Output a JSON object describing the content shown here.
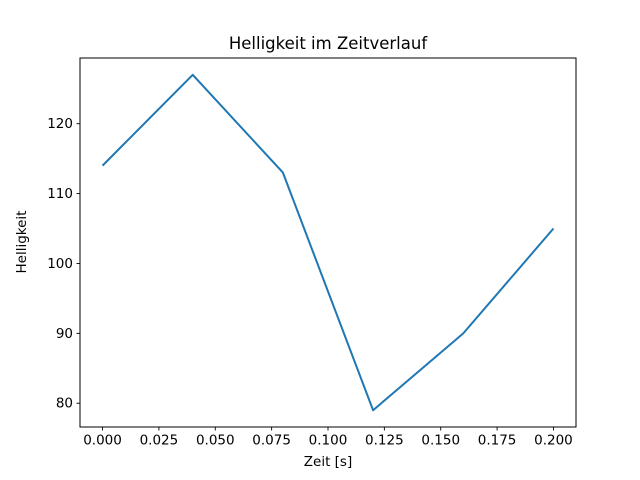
{
  "chart_data": {
    "type": "line",
    "title": "Helligkeit im Zeitverlauf",
    "xlabel": "Zeit [s]",
    "ylabel": "Helligkeit",
    "x": [
      0.0,
      0.04,
      0.08,
      0.12,
      0.16,
      0.2
    ],
    "y": [
      114,
      127,
      113,
      79,
      90,
      105
    ],
    "xlim": [
      -0.01,
      0.21
    ],
    "ylim": [
      76.6,
      129.4
    ],
    "xticks": [
      0.0,
      0.025,
      0.05,
      0.075,
      0.1,
      0.125,
      0.15,
      0.175,
      0.2
    ],
    "xtick_labels": [
      "0.000",
      "0.025",
      "0.050",
      "0.075",
      "0.100",
      "0.125",
      "0.150",
      "0.175",
      "0.200"
    ],
    "yticks": [
      80,
      90,
      100,
      110,
      120
    ],
    "ytick_labels": [
      "80",
      "90",
      "100",
      "110",
      "120"
    ],
    "line_color": "#1f77b4",
    "axis_color": "#000000",
    "background_color": "#ffffff",
    "grid": false,
    "legend": null
  }
}
